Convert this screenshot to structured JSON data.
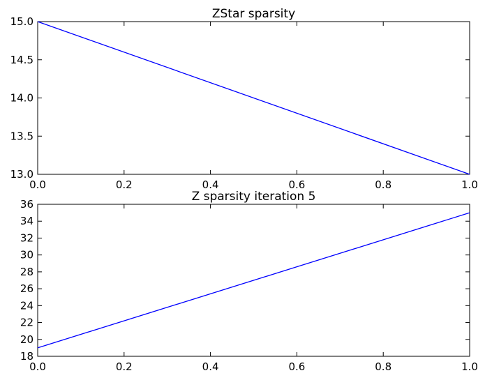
{
  "chart_data": [
    {
      "type": "line",
      "title": "ZStar sparsity",
      "xlabel": "",
      "ylabel": "",
      "xlim": [
        0.0,
        1.0
      ],
      "ylim": [
        13.0,
        15.0
      ],
      "xticks": [
        "0.0",
        "0.2",
        "0.4",
        "0.6",
        "0.8",
        "1.0"
      ],
      "yticks": [
        "13.0",
        "13.5",
        "14.0",
        "14.5",
        "15.0"
      ],
      "grid": false,
      "series": [
        {
          "color": "#0000ff",
          "x": [
            0,
            1
          ],
          "y": [
            15,
            13
          ]
        }
      ]
    },
    {
      "type": "line",
      "title": "Z sparsity iteration 5",
      "xlabel": "",
      "ylabel": "",
      "xlim": [
        0.0,
        1.0
      ],
      "ylim": [
        18,
        36
      ],
      "xticks": [
        "0.0",
        "0.2",
        "0.4",
        "0.6",
        "0.8",
        "1.0"
      ],
      "yticks": [
        "18",
        "20",
        "22",
        "24",
        "26",
        "28",
        "30",
        "32",
        "34",
        "36"
      ],
      "grid": false,
      "series": [
        {
          "color": "#0000ff",
          "x": [
            0,
            1
          ],
          "y": [
            19,
            35
          ]
        }
      ]
    }
  ]
}
